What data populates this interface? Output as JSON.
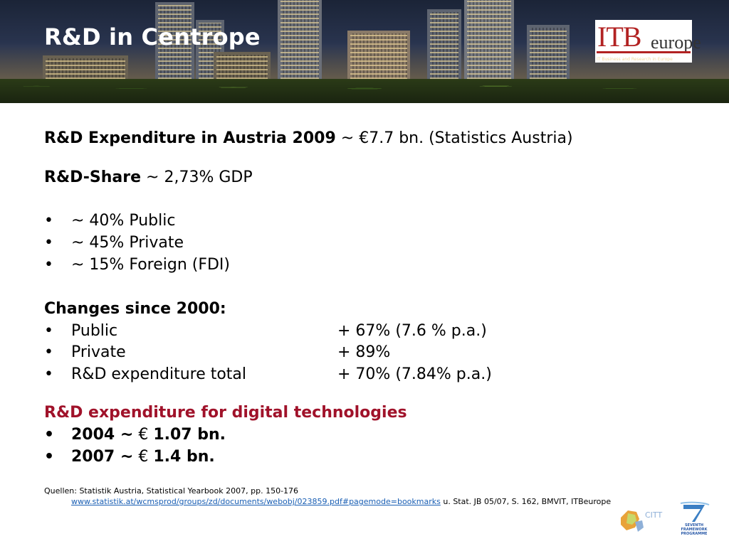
{
  "header": {
    "title": "R&D in Centrope",
    "logo": {
      "brand_main": "ITB",
      "brand_sub": "europe",
      "tagline": "IT Business and Research in Europe"
    }
  },
  "colors": {
    "accent_red": "#a0122a",
    "link_blue": "#1a5fb4"
  },
  "content": {
    "expenditure": {
      "label": "R&D Expenditure in Austria 2009",
      "value": " ~ €7.7 bn. (Statistics Austria)"
    },
    "share": {
      "label": "R&D-Share",
      "value": " ~ 2,73% GDP"
    },
    "share_breakdown": [
      {
        "bullet": "•",
        "text": "~ 40% Public"
      },
      {
        "bullet": "•",
        "text": "~ 45% Private"
      },
      {
        "bullet": "•",
        "text": "~ 15% Foreign (FDI)"
      }
    ],
    "changes": {
      "heading": "Changes since 2000:",
      "items": [
        {
          "bullet": "•",
          "label": "Public",
          "value": "+ 67% (7.6 % p.a.)"
        },
        {
          "bullet": "•",
          "label": "Private",
          "value": "+ 89%"
        },
        {
          "bullet": "•",
          "label": "R&D  expenditure total",
          "value": "+ 70% (7.84% p.a.)"
        }
      ]
    },
    "digital": {
      "heading": "R&D expenditure for digital technologies",
      "items": [
        {
          "bullet": "•",
          "year": "2004 ~",
          "euro": " € ",
          "amount": "1.07 bn."
        },
        {
          "bullet": "•",
          "year": "2007 ~",
          "euro": " € ",
          "amount": "1.4   bn."
        }
      ]
    }
  },
  "sources": {
    "line1": "Quellen: Statistik Austria, Statistical Yearbook 2007, pp. 150-176",
    "link": "www.statistik.at/wcmsprod/groups/zd/documents/webobj/023859.pdf#pagemode=bookmarks",
    "suffix": " u. Stat. JB 05/07, S. 162, BMVIT, ITBeurope"
  },
  "footer_logos": {
    "citt": "CITT",
    "fp7": "SEVENTH FRAMEWORK PROGRAMME"
  }
}
